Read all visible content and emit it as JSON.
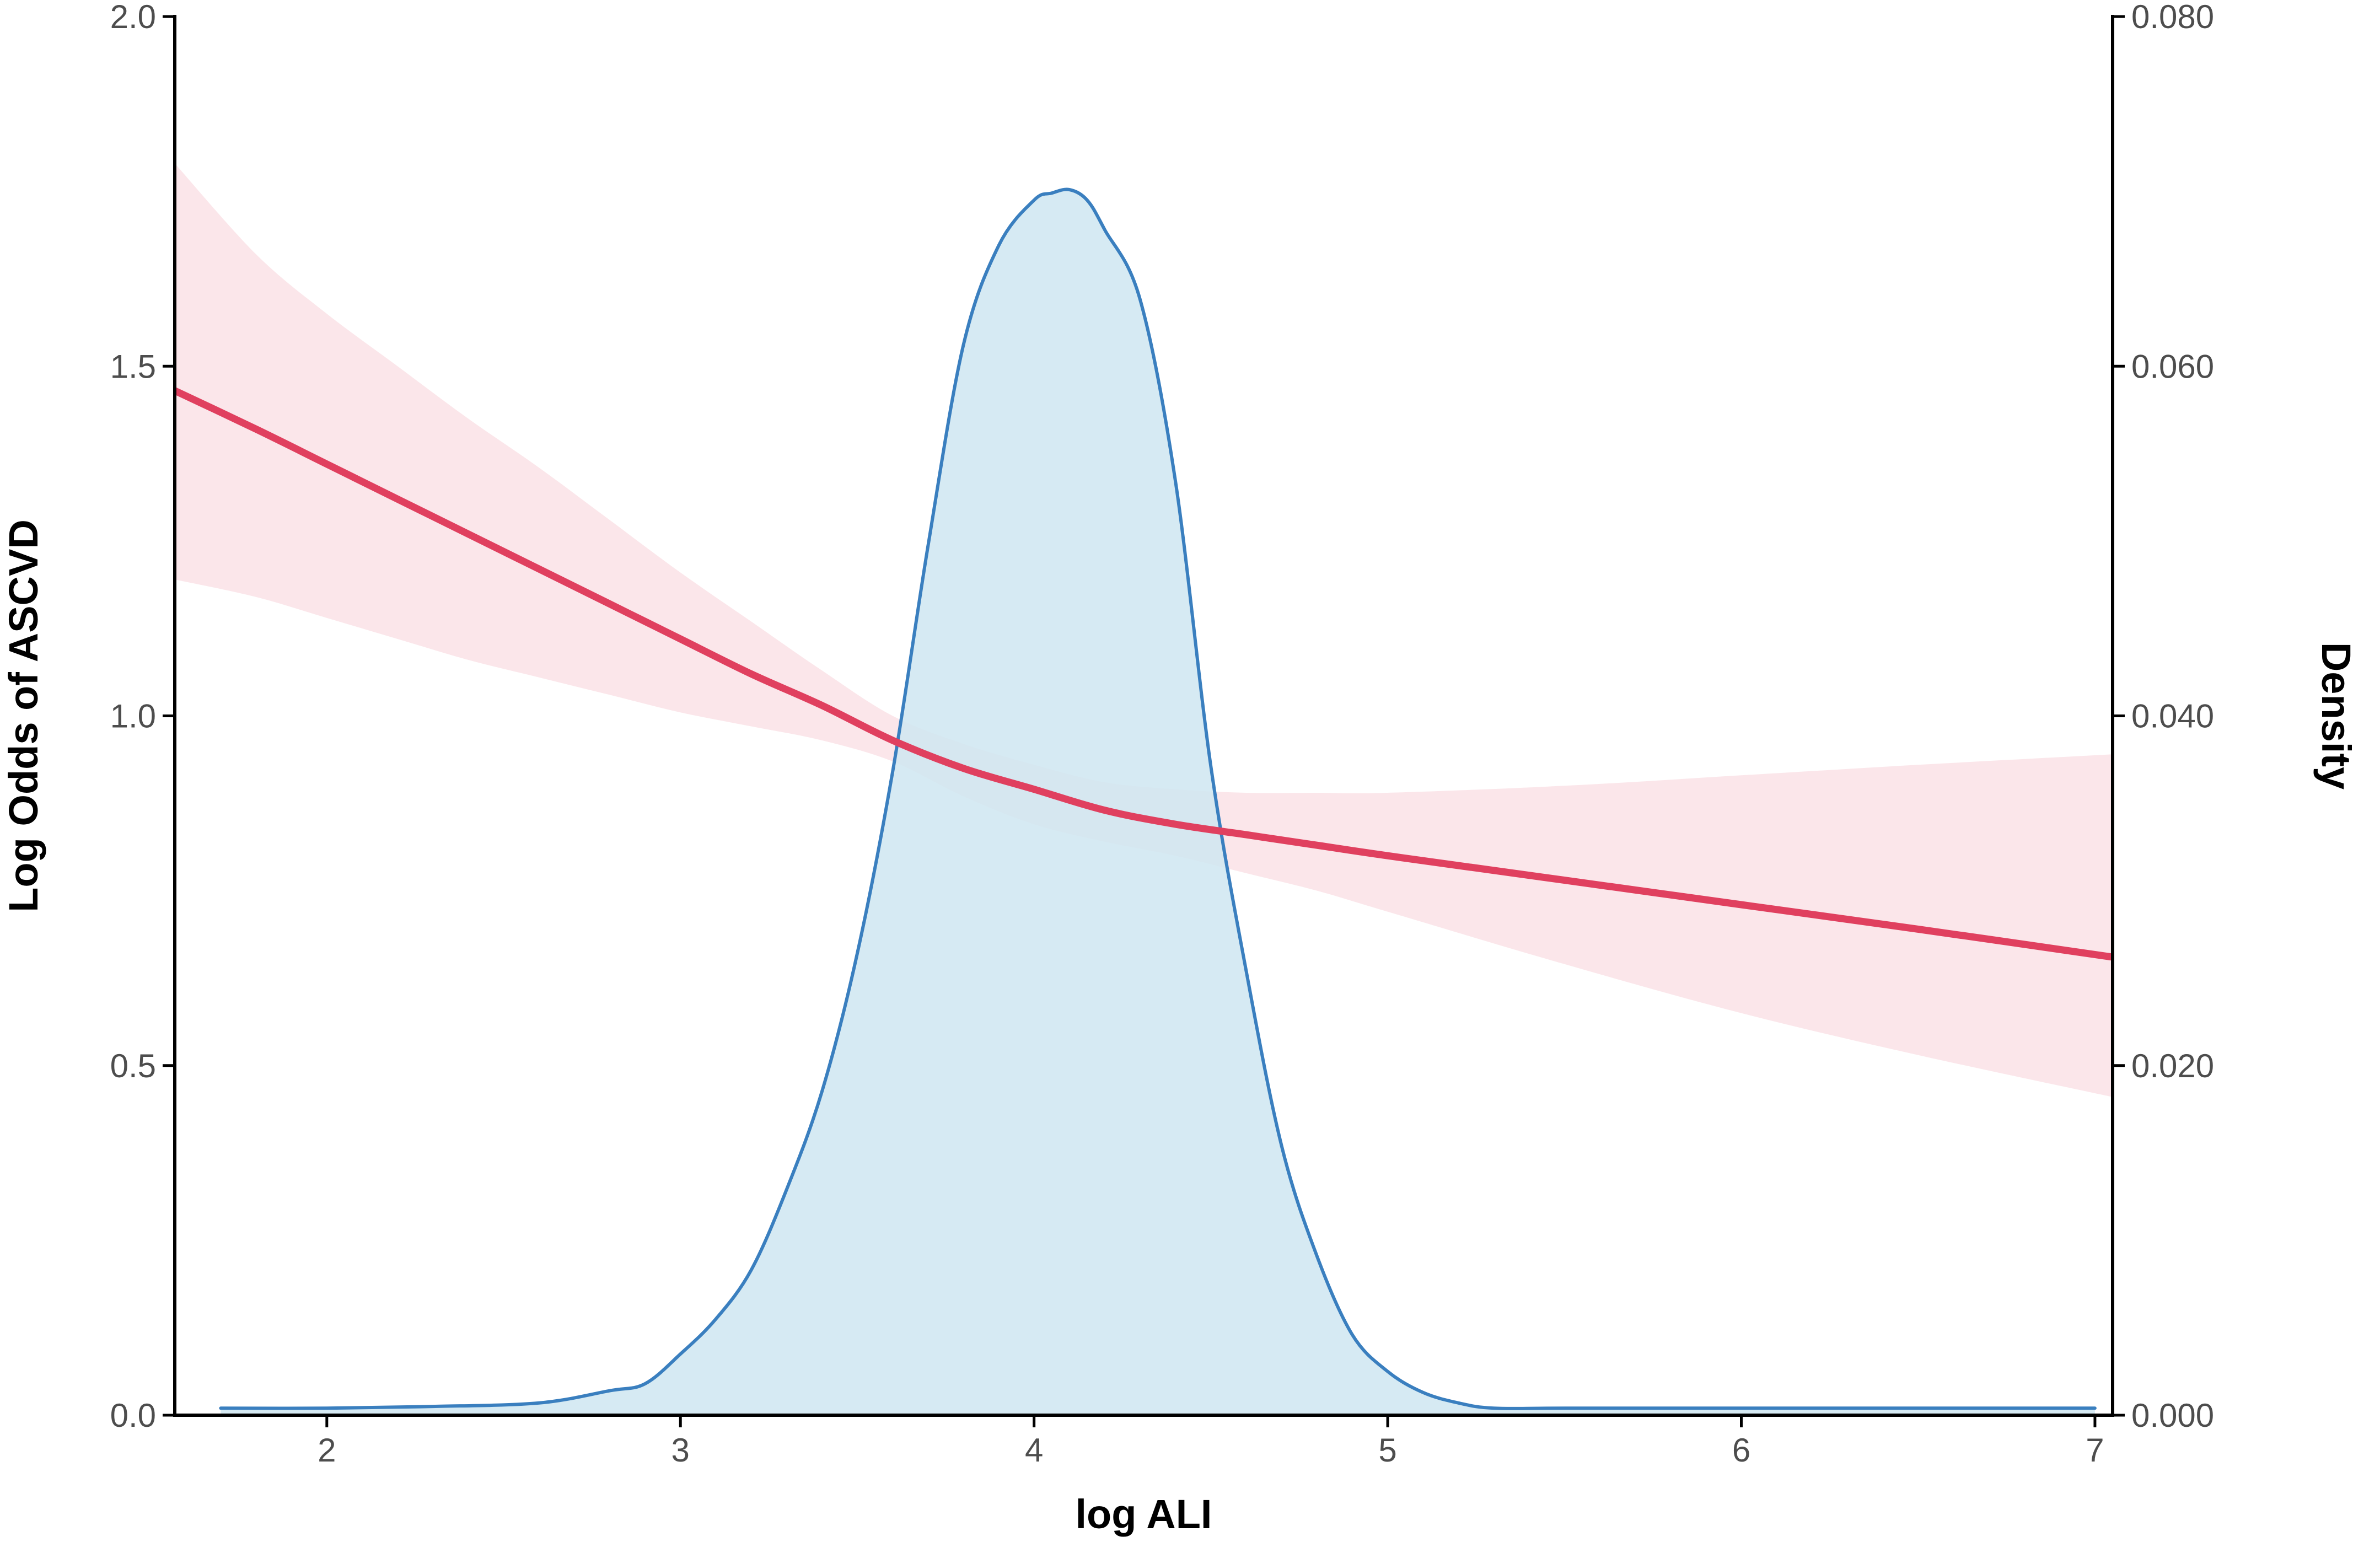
{
  "chart_data": {
    "type": "line",
    "title": "",
    "xlabel": "log ALI",
    "ylabel_left": "Log Odds of ASCVD",
    "ylabel_right": "Density",
    "xlim": [
      1.57,
      7.05
    ],
    "ylim_left": [
      0,
      2
    ],
    "ylim_right": [
      0,
      0.08
    ],
    "x_ticks": [
      "2",
      "3",
      "4",
      "5",
      "6",
      "7"
    ],
    "x_tick_values": [
      2,
      3,
      4,
      5,
      6,
      7
    ],
    "y_left_ticks": [
      "0.0",
      "0.5",
      "1.0",
      "1.5",
      "2.0"
    ],
    "y_left_tick_values": [
      0,
      0.5,
      1,
      1.5,
      2
    ],
    "y_right_ticks": [
      "0.000",
      "0.020",
      "0.040",
      "0.060",
      "0.080"
    ],
    "y_right_tick_values": [
      0,
      0.02,
      0.04,
      0.06,
      0.08
    ],
    "grid": false,
    "legend": "none",
    "colors": {
      "spline_line": "#e0405f",
      "confidence_band": "#fbe3e8",
      "density_line": "#3a7fbf",
      "density_fill": "#cfe6f1",
      "axis": "#000000"
    },
    "series": [
      {
        "type": "line",
        "axis": "left",
        "x": [
          1.57,
          1.8,
          2.0,
          2.2,
          2.4,
          2.6,
          2.8,
          3.0,
          3.2,
          3.4,
          3.6,
          3.8,
          4.0,
          4.2,
          4.4,
          4.6,
          4.8,
          5.0,
          5.5,
          6.0,
          6.5,
          7.05
        ],
        "y": [
          1.465,
          1.41,
          1.36,
          1.31,
          1.26,
          1.21,
          1.16,
          1.11,
          1.06,
          1.015,
          0.965,
          0.925,
          0.895,
          0.865,
          0.845,
          0.83,
          0.815,
          0.8,
          0.765,
          0.73,
          0.695,
          0.655
        ],
        "lower": [
          1.195,
          1.17,
          1.14,
          1.11,
          1.08,
          1.055,
          1.03,
          1.005,
          0.985,
          0.965,
          0.935,
          0.885,
          0.845,
          0.82,
          0.8,
          0.775,
          0.75,
          0.72,
          0.645,
          0.575,
          0.515,
          0.455
        ],
        "upper": [
          1.79,
          1.66,
          1.575,
          1.5,
          1.425,
          1.355,
          1.28,
          1.205,
          1.135,
          1.065,
          1.0,
          0.96,
          0.93,
          0.905,
          0.895,
          0.89,
          0.89,
          0.89,
          0.9,
          0.915,
          0.93,
          0.945
        ]
      },
      {
        "type": "area",
        "axis": "right",
        "x": [
          1.7,
          2.0,
          2.3,
          2.6,
          2.8,
          2.9,
          3.0,
          3.1,
          3.2,
          3.3,
          3.4,
          3.5,
          3.6,
          3.7,
          3.8,
          3.9,
          4.0,
          4.05,
          4.1,
          4.15,
          4.2,
          4.3,
          4.4,
          4.5,
          4.6,
          4.7,
          4.8,
          4.9,
          5.0,
          5.1,
          5.2,
          5.3,
          5.5,
          6.0,
          6.5,
          7.0
        ],
        "y": [
          0.0004,
          0.0004,
          0.0005,
          0.0007,
          0.0014,
          0.0018,
          0.0035,
          0.0055,
          0.0083,
          0.0129,
          0.0185,
          0.0264,
          0.0368,
          0.0497,
          0.0612,
          0.0669,
          0.0695,
          0.0699,
          0.0701,
          0.0695,
          0.0678,
          0.0638,
          0.0534,
          0.0371,
          0.0254,
          0.0154,
          0.0091,
          0.0046,
          0.0025,
          0.0013,
          0.0007,
          0.0004,
          0.0004,
          0.0004,
          0.0004,
          0.0004
        ]
      }
    ]
  }
}
